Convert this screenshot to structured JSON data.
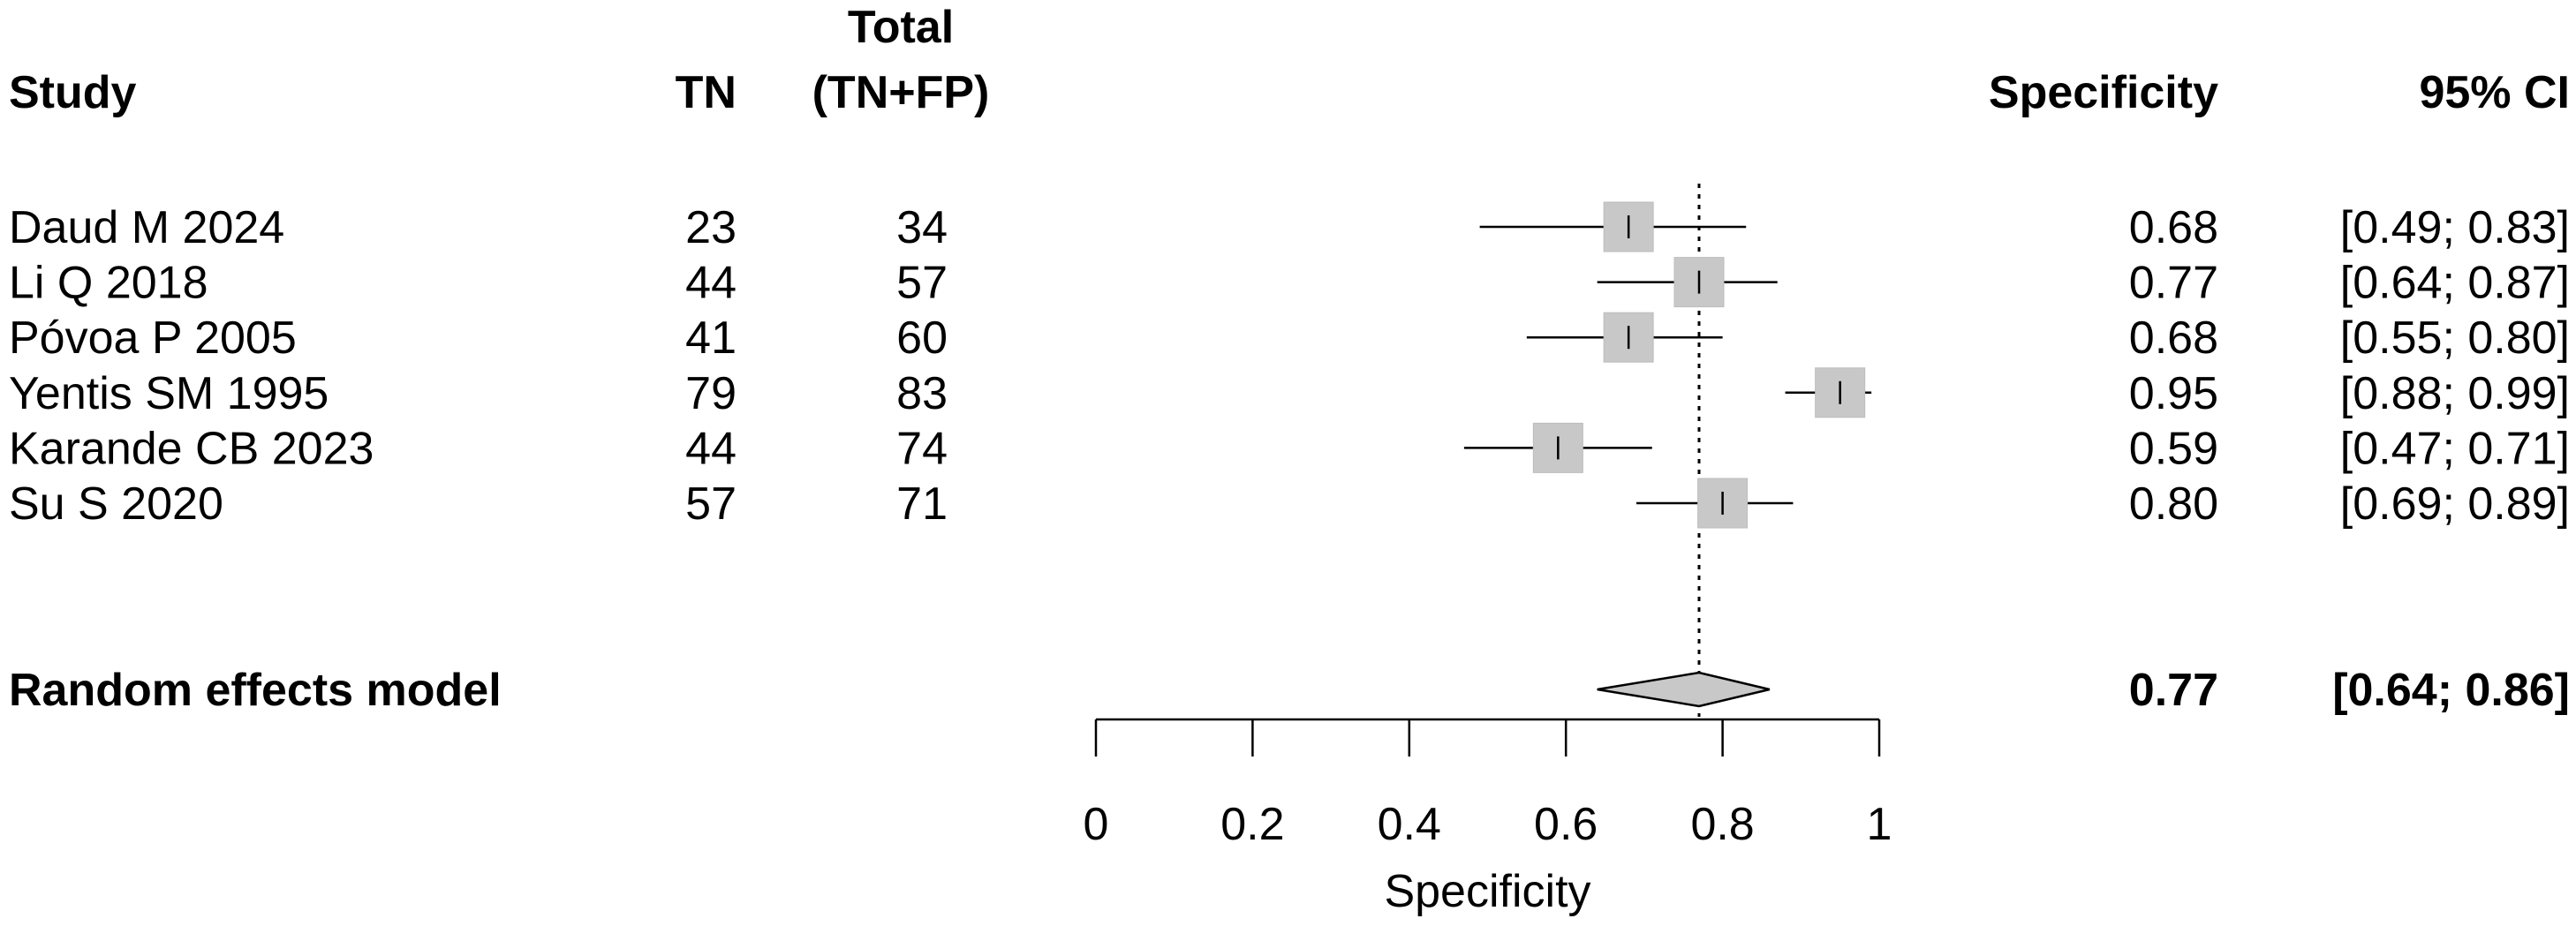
{
  "headers": {
    "study": "Study",
    "tn": "TN",
    "total_line1": "Total",
    "total_line2": "(TN+FP)",
    "specificity": "Specificity",
    "ci": "95% CI"
  },
  "chart_data": {
    "type": "forest",
    "xlabel": "Specificity",
    "xlim": [
      0,
      1
    ],
    "ticks": [
      0,
      0.2,
      0.4,
      0.6,
      0.8,
      1
    ],
    "tick_labels": [
      "0",
      "0.2",
      "0.4",
      "0.6",
      "0.8",
      "1"
    ],
    "reference_line": 0.77,
    "studies": [
      {
        "name": "Daud M 2024",
        "tn": "23",
        "total": "34",
        "spec": 0.68,
        "lo": 0.49,
        "hi": 0.83,
        "spec_text": "0.68",
        "ci_text": "[0.49; 0.83]",
        "weight": 1.0
      },
      {
        "name": "Li Q 2018",
        "tn": "44",
        "total": "57",
        "spec": 0.77,
        "lo": 0.64,
        "hi": 0.87,
        "spec_text": "0.77",
        "ci_text": "[0.64; 0.87]",
        "weight": 1.0
      },
      {
        "name": "Póvoa P 2005",
        "tn": "41",
        "total": "60",
        "spec": 0.68,
        "lo": 0.55,
        "hi": 0.8,
        "spec_text": "0.68",
        "ci_text": "[0.55; 0.80]",
        "weight": 1.0
      },
      {
        "name": "Yentis SM 1995",
        "tn": "79",
        "total": "83",
        "spec": 0.95,
        "lo": 0.88,
        "hi": 0.99,
        "spec_text": "0.95",
        "ci_text": "[0.88; 0.99]",
        "weight": 1.0
      },
      {
        "name": "Karande CB 2023",
        "tn": "44",
        "total": "74",
        "spec": 0.59,
        "lo": 0.47,
        "hi": 0.71,
        "spec_text": "0.59",
        "ci_text": "[0.47; 0.71]",
        "weight": 1.0
      },
      {
        "name": "Su S 2020",
        "tn": "57",
        "total": "71",
        "spec": 0.8,
        "lo": 0.69,
        "hi": 0.89,
        "spec_text": "0.80",
        "ci_text": "[0.69; 0.89]",
        "weight": 1.0
      }
    ],
    "pooled": {
      "name": "Random effects model",
      "spec": 0.77,
      "lo": 0.64,
      "hi": 0.86,
      "spec_text": "0.77",
      "ci_text": "[0.64; 0.86]"
    },
    "colors": {
      "box": "#c8c8c8",
      "box_stroke": "#bdbdbd",
      "diamond": "#c8c8c8",
      "line": "#000000"
    }
  }
}
